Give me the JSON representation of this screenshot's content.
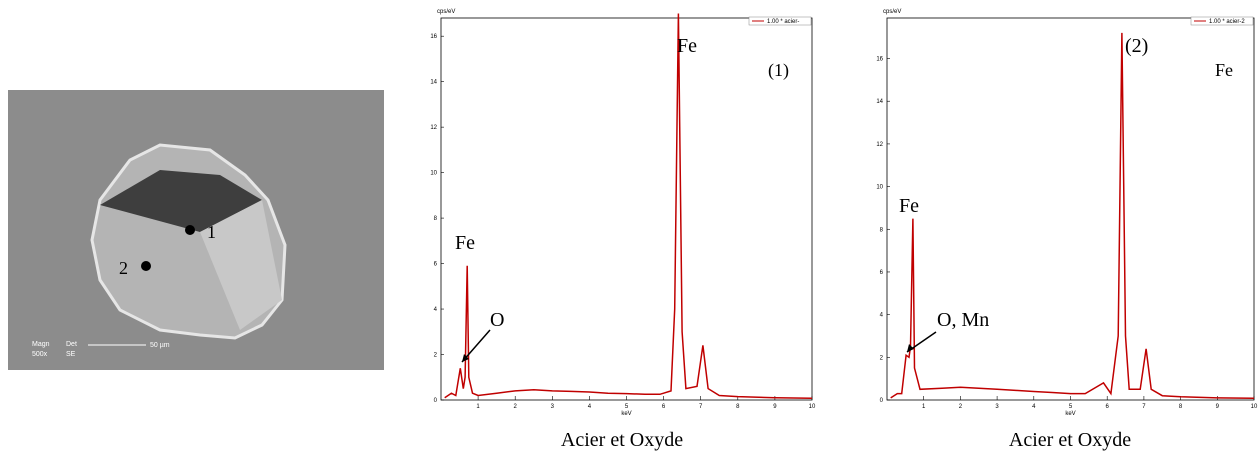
{
  "micrograph": {
    "points": [
      "1",
      "2"
    ],
    "info": [
      "Magn",
      "500x",
      "Det",
      "SE",
      "50 µm"
    ]
  },
  "chart_data": [
    {
      "type": "line",
      "y_label": "cps/eV",
      "x_label": "keV",
      "caption": "Acier et Oxyde",
      "annotations": [
        "Fe",
        "(1)",
        "Fe",
        "O"
      ],
      "xlim": [
        0,
        10
      ],
      "xticks": [
        1,
        2,
        3,
        4,
        5,
        6,
        7,
        8,
        9,
        10
      ],
      "ylim": [
        0,
        16.8
      ],
      "yticks": [
        0,
        2,
        4,
        6,
        8,
        10,
        12,
        14,
        16
      ],
      "x": [
        0.1,
        0.28,
        0.4,
        0.52,
        0.6,
        0.65,
        0.705,
        0.75,
        0.85,
        1.0,
        1.5,
        2,
        2.5,
        3,
        3.5,
        4,
        4.5,
        5,
        5.5,
        5.9,
        6.0,
        6.2,
        6.3,
        6.4,
        6.5,
        6.6,
        6.9,
        7.06,
        7.2,
        7.5,
        8,
        9,
        10
      ],
      "series": [
        {
          "name": "1.00 * acier-",
          "color": "#c00000",
          "values": [
            0.1,
            0.3,
            0.2,
            1.4,
            0.5,
            1.0,
            5.9,
            1.0,
            0.3,
            0.2,
            0.3,
            0.4,
            0.45,
            0.4,
            0.38,
            0.35,
            0.3,
            0.28,
            0.25,
            0.25,
            0.3,
            0.4,
            4,
            17,
            3,
            0.5,
            0.6,
            2.4,
            0.5,
            0.2,
            0.15,
            0.1,
            0.08
          ]
        }
      ]
    },
    {
      "type": "line",
      "y_label": "cps/eV",
      "x_label": "keV",
      "caption": "Acier et Oxyde",
      "annotations": [
        "(2)",
        "Fe",
        "Fe",
        "O, Mn"
      ],
      "xlim": [
        0,
        10
      ],
      "xticks": [
        1,
        2,
        3,
        4,
        5,
        6,
        7,
        8,
        9,
        10
      ],
      "ylim": [
        0,
        17.9
      ],
      "yticks": [
        0,
        2,
        4,
        6,
        8,
        10,
        12,
        14,
        16
      ],
      "x": [
        0.1,
        0.28,
        0.4,
        0.52,
        0.6,
        0.64,
        0.705,
        0.75,
        0.9,
        1.5,
        2,
        2.5,
        3,
        3.5,
        4,
        4.5,
        5,
        5.4,
        5.9,
        6.1,
        6.3,
        6.4,
        6.5,
        6.6,
        6.9,
        7.06,
        7.2,
        7.5,
        8,
        9,
        10
      ],
      "series": [
        {
          "name": "1.00 * acier-2",
          "color": "#c00000",
          "values": [
            0.1,
            0.3,
            0.3,
            2.1,
            2.0,
            2.5,
            8.5,
            1.5,
            0.5,
            0.55,
            0.6,
            0.55,
            0.5,
            0.45,
            0.4,
            0.35,
            0.3,
            0.3,
            0.8,
            0.3,
            3,
            17.2,
            3,
            0.5,
            0.5,
            2.4,
            0.5,
            0.2,
            0.15,
            0.1,
            0.08
          ]
        }
      ]
    }
  ]
}
